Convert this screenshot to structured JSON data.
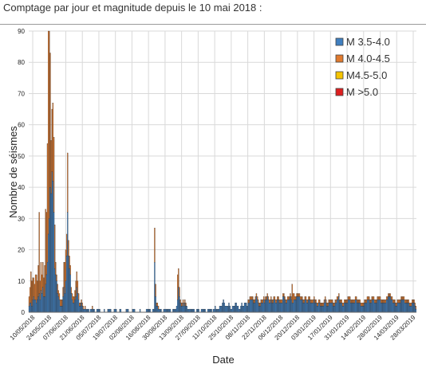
{
  "header": {
    "title": "Comptage par jour et magnitude depuis le 10 mai 2018 :"
  },
  "colors": {
    "m35_40": "#3f7fc0",
    "m40_45": "#e07a2e",
    "m45_50": "#f5c400",
    "m50": "#dd1f1f",
    "grid": "#d9d9d9",
    "bar_outline": "#1a1a1a"
  },
  "chart_data": {
    "type": "bar",
    "stacked": true,
    "title": "Comptage par jour et magnitude depuis le 10 mai 2018 :",
    "xlabel": "Date",
    "ylabel": "Nombre de séismes",
    "ylim": [
      0,
      90
    ],
    "yticks": [
      0,
      10,
      20,
      30,
      40,
      50,
      60,
      70,
      80,
      90
    ],
    "grid": true,
    "legend_position": "top-right",
    "x_tick_labels": [
      "10/05/2018",
      "24/05/2018",
      "07/06/2018",
      "21/06/2018",
      "05/07/2018",
      "19/07/2018",
      "02/08/2018",
      "16/08/2018",
      "30/08/2018",
      "13/09/2018",
      "27/09/2018",
      "11/10/2018",
      "25/10/2018",
      "08/11/2018",
      "22/11/2018",
      "06/12/2018",
      "20/12/2018",
      "03/01/2019",
      "17/01/2019",
      "31/01/2019",
      "14/02/2019",
      "28/02/2019",
      "14/03/2019",
      "28/03/2019"
    ],
    "series": [
      {
        "name": "M 3.5-4.0",
        "color": "#3f7fc0",
        "values": [
          2,
          3,
          3,
          2,
          4,
          5,
          4,
          4,
          3,
          4,
          5,
          6,
          4,
          7,
          6,
          8,
          5,
          5,
          9,
          12,
          16,
          25,
          30,
          40,
          38,
          45,
          42,
          32,
          14,
          12,
          10,
          6,
          5,
          4,
          2,
          2,
          2,
          5,
          8,
          6,
          10,
          18,
          32,
          18,
          14,
          12,
          6,
          4,
          3,
          3,
          4,
          5,
          8,
          6,
          4,
          2,
          2,
          3,
          2,
          1,
          1,
          1,
          1,
          1,
          1,
          1,
          0,
          1,
          1,
          1,
          1,
          1,
          0,
          0,
          1,
          1,
          1,
          1,
          0,
          0,
          0,
          0,
          1,
          0,
          0,
          0,
          1,
          1,
          1,
          1,
          0,
          0,
          0,
          1,
          1,
          1,
          0,
          0,
          0,
          1,
          1,
          0,
          0,
          0,
          0,
          0,
          1,
          1,
          1,
          0,
          0,
          0,
          0,
          1,
          1,
          1,
          0,
          0,
          0,
          0,
          0,
          1,
          0,
          0,
          0,
          0,
          0,
          0,
          1,
          1,
          1,
          1,
          1,
          0,
          0,
          1,
          1,
          16,
          5,
          2,
          2,
          1,
          1,
          1,
          1,
          0,
          0,
          1,
          1,
          1,
          1,
          1,
          1,
          1,
          1,
          0,
          0,
          1,
          1,
          1,
          1,
          2,
          4,
          8,
          5,
          3,
          2,
          2,
          3,
          2,
          3,
          2,
          2,
          1,
          1,
          1,
          1,
          1,
          1,
          1,
          1,
          0,
          0,
          1,
          1,
          1,
          0,
          0,
          1,
          1,
          1,
          1,
          1,
          0,
          0,
          1,
          1,
          1,
          1,
          1,
          0,
          1,
          1,
          2,
          1,
          1,
          1,
          1,
          2,
          2,
          2,
          3,
          4,
          3,
          2,
          2,
          2,
          2,
          3,
          2,
          1,
          1,
          2,
          2,
          2,
          3,
          3,
          2,
          2,
          1,
          1,
          2,
          3,
          2,
          2,
          3,
          3,
          3,
          2,
          3,
          3,
          4,
          4,
          4,
          4,
          3,
          3,
          4,
          5,
          4,
          3,
          2,
          2,
          3,
          3,
          3,
          4,
          3,
          4,
          4,
          5,
          4,
          3,
          3,
          4,
          3,
          3,
          4,
          4,
          3,
          3,
          4,
          4,
          3,
          3,
          3,
          3,
          5,
          5,
          4,
          3,
          3,
          4,
          4,
          4,
          5,
          4,
          3,
          3,
          4,
          4,
          4,
          5,
          5,
          5,
          5,
          4,
          4,
          4,
          3,
          3,
          4,
          4,
          3,
          3,
          4,
          4,
          3,
          3,
          3,
          3,
          4,
          3,
          3,
          2,
          2,
          3,
          3,
          2,
          2,
          2,
          2,
          3,
          4,
          3,
          2,
          2,
          3,
          3,
          3,
          3,
          3,
          2,
          2,
          3,
          3,
          4,
          4,
          5,
          3,
          3,
          3,
          2,
          2,
          3,
          3,
          3,
          3,
          4,
          4,
          4,
          3,
          3,
          3,
          3,
          3,
          4,
          4,
          3,
          3,
          3,
          3,
          2,
          2,
          2,
          2,
          3,
          3,
          3,
          4,
          4,
          4,
          3,
          3,
          4,
          4,
          4,
          3,
          3,
          3,
          4,
          4,
          4,
          4,
          3,
          3,
          3,
          3,
          3,
          3,
          4,
          4,
          5,
          5,
          5,
          4,
          4,
          3,
          3,
          3,
          2,
          2,
          3,
          3,
          3,
          3,
          4,
          4,
          4,
          4,
          3,
          3,
          3,
          3,
          3,
          2,
          2,
          2,
          3,
          3,
          3,
          2,
          1
        ]
      },
      {
        "name": "M 4.0-4.5",
        "color": "#e07a2e",
        "values": [
          3,
          5,
          10,
          8,
          7,
          6,
          5,
          8,
          9,
          6,
          10,
          26,
          6,
          9,
          6,
          8,
          6,
          10,
          24,
          20,
          38,
          65,
          60,
          43,
          17,
          20,
          25,
          24,
          14,
          4,
          2,
          3,
          2,
          2,
          2,
          2,
          2,
          3,
          8,
          10,
          10,
          7,
          19,
          5,
          4,
          3,
          2,
          2,
          2,
          2,
          3,
          5,
          5,
          4,
          2,
          1,
          1,
          1,
          1,
          1,
          0,
          1,
          0,
          0,
          0,
          0,
          0,
          0,
          0,
          1,
          0,
          0,
          0,
          0,
          0,
          0,
          0,
          0,
          0,
          0,
          0,
          0,
          0,
          0,
          0,
          0,
          0,
          0,
          0,
          0,
          0,
          0,
          0,
          0,
          0,
          0,
          0,
          0,
          0,
          0,
          0,
          0,
          0,
          0,
          0,
          0,
          0,
          0,
          0,
          0,
          0,
          0,
          0,
          0,
          0,
          0,
          0,
          0,
          0,
          0,
          0,
          0,
          0,
          0,
          0,
          0,
          0,
          0,
          0,
          0,
          0,
          0,
          0,
          0,
          0,
          0,
          0,
          11,
          4,
          1,
          1,
          1,
          0,
          0,
          0,
          0,
          0,
          0,
          0,
          0,
          0,
          0,
          0,
          0,
          0,
          0,
          0,
          0,
          0,
          0,
          0,
          0,
          8,
          6,
          3,
          1,
          1,
          1,
          1,
          1,
          1,
          1,
          0,
          0,
          0,
          0,
          0,
          0,
          0,
          0,
          0,
          0,
          0,
          0,
          0,
          0,
          0,
          0,
          0,
          0,
          0,
          0,
          0,
          0,
          0,
          0,
          0,
          0,
          0,
          0,
          0,
          0,
          0,
          0,
          0,
          0,
          0,
          0,
          0,
          0,
          0,
          0,
          0,
          0,
          0,
          0,
          0,
          0,
          0,
          0,
          0,
          0,
          0,
          0,
          0,
          0,
          0,
          0,
          0,
          0,
          0,
          0,
          0,
          0,
          0,
          0,
          0,
          0,
          0,
          1,
          1,
          1,
          1,
          1,
          1,
          1,
          1,
          1,
          1,
          1,
          1,
          1,
          1,
          1,
          1,
          1,
          1,
          1,
          1,
          1,
          1,
          1,
          1,
          1,
          1,
          1,
          1,
          1,
          1,
          1,
          1,
          1,
          1,
          1,
          1,
          1,
          1,
          1,
          1,
          1,
          1,
          1,
          1,
          1,
          1,
          1,
          1,
          6,
          3,
          2,
          1,
          1,
          1,
          1,
          1,
          1,
          1,
          1,
          1,
          1,
          1,
          1,
          1,
          1,
          1,
          1,
          1,
          1,
          1,
          1,
          1,
          1,
          1,
          1,
          1,
          1,
          1,
          1,
          1,
          1,
          1,
          1,
          1,
          1,
          1,
          1,
          1,
          1,
          1,
          1,
          1,
          1,
          1,
          1,
          1,
          1,
          1,
          1,
          1,
          1,
          1,
          1,
          1,
          1,
          1,
          1,
          1,
          1,
          1,
          1,
          1,
          1,
          1,
          1,
          1,
          1,
          1,
          1,
          1,
          1,
          1,
          1,
          1,
          1,
          1,
          1,
          1,
          1,
          1,
          1,
          1,
          1,
          1,
          1,
          1,
          1,
          1,
          1,
          1,
          1,
          1,
          1,
          1,
          1,
          1,
          1,
          1,
          1,
          1,
          1,
          1,
          1,
          1,
          1,
          1,
          1,
          1,
          1,
          1,
          1,
          1,
          1,
          1,
          1,
          1,
          1,
          1,
          1,
          1,
          1,
          1,
          1,
          1,
          1,
          1,
          1,
          1,
          1,
          1,
          1,
          1,
          1,
          1,
          1,
          1,
          1,
          1,
          1,
          1,
          1,
          1,
          1,
          1,
          1,
          1
        ]
      },
      {
        "name": "M4.5-5.0",
        "color": "#f5c400",
        "values": []
      },
      {
        "name": "M >5.0",
        "color": "#dd1f1f",
        "values": []
      }
    ]
  }
}
